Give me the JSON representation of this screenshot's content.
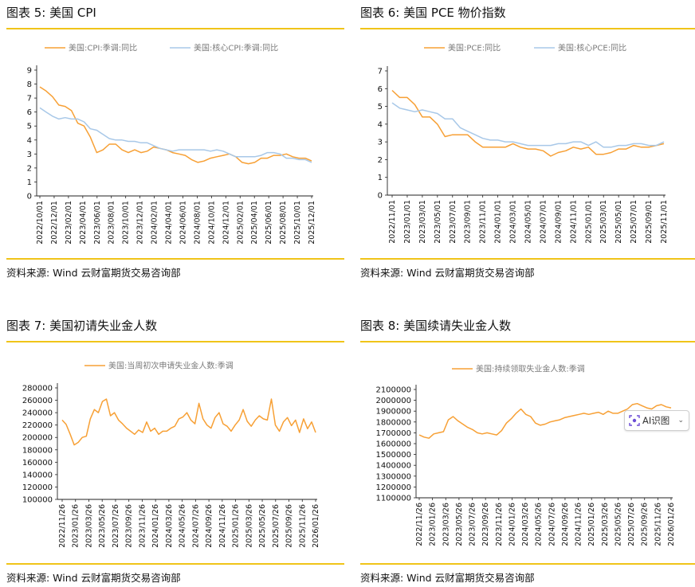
{
  "colors": {
    "orange": "#f7a035",
    "blue": "#a8c8e8",
    "accent": "#f0c419",
    "axis": "#222222"
  },
  "ai_badge": {
    "label": "AI识图",
    "icon": "ai-scan-icon",
    "caret": "⌄"
  },
  "panels": [
    {
      "title": "图表  5:  美国 CPI",
      "source": "资料来源:  Wind  云财富期货交易咨询部",
      "chart_data": {
        "type": "line",
        "y_ticks": [
          "0",
          "1",
          "2",
          "3",
          "4",
          "5",
          "6",
          "7",
          "8",
          "9"
        ],
        "ylim": [
          0,
          9
        ],
        "x_ticks": [
          "2022/10/01",
          "2022/12/01",
          "2023/02/01",
          "2023/04/01",
          "2023/06/01",
          "2023/08/01",
          "2023/10/01",
          "2023/12/01",
          "2024/02/01",
          "2024/04/01",
          "2024/06/01",
          "2024/08/01",
          "2024/10/01",
          "2024/12/01",
          "2025/02/01",
          "2025/04/01",
          "2025/06/01",
          "2025/08/01",
          "2025/10/01",
          "2025/12/01"
        ],
        "series": [
          {
            "name": "美国:CPI:季调:同比",
            "color": "orange",
            "values": [
              7.8,
              7.5,
              7.1,
              6.5,
              6.4,
              6.1,
              5.2,
              5.0,
              4.2,
              3.1,
              3.3,
              3.7,
              3.7,
              3.3,
              3.1,
              3.3,
              3.1,
              3.2,
              3.5,
              3.4,
              3.3,
              3.1,
              3.0,
              2.9,
              2.6,
              2.4,
              2.5,
              2.7,
              2.8,
              2.9,
              3.0,
              2.8,
              2.4,
              2.3,
              2.4,
              2.7,
              2.7,
              2.9,
              2.9,
              3.0,
              2.8,
              2.7,
              2.7,
              2.5
            ]
          },
          {
            "name": "美国:核心CPI:季调:同比",
            "color": "blue",
            "values": [
              6.3,
              6.0,
              5.7,
              5.5,
              5.6,
              5.5,
              5.5,
              5.3,
              4.8,
              4.7,
              4.4,
              4.1,
              4.0,
              4.0,
              3.9,
              3.9,
              3.8,
              3.8,
              3.6,
              3.4,
              3.3,
              3.2,
              3.3,
              3.3,
              3.3,
              3.3,
              3.3,
              3.2,
              3.3,
              3.2,
              3.0,
              2.8,
              2.8,
              2.8,
              2.8,
              2.9,
              3.1,
              3.1,
              3.0,
              2.7,
              2.7,
              2.6,
              2.6,
              2.4
            ]
          }
        ]
      }
    },
    {
      "title": "图表  6:  美国 PCE 物价指数",
      "source": "资料来源:  Wind  云财富期货交易咨询部",
      "chart_data": {
        "type": "line",
        "y_ticks": [
          "0",
          "1",
          "2",
          "3",
          "4",
          "5",
          "6",
          "7"
        ],
        "ylim": [
          0,
          7
        ],
        "x_ticks": [
          "2022/11/01",
          "2023/01/01",
          "2023/03/01",
          "2023/05/01",
          "2023/07/01",
          "2023/09/01",
          "2023/11/01",
          "2024/01/01",
          "2024/03/01",
          "2024/05/01",
          "2024/07/01",
          "2024/09/01",
          "2024/11/01",
          "2025/01/01",
          "2025/03/01",
          "2025/05/01",
          "2025/07/01",
          "2025/09/01",
          "2025/11/01"
        ],
        "series": [
          {
            "name": "美国:PCE:同比",
            "color": "orange",
            "values": [
              5.9,
              5.5,
              5.5,
              5.1,
              4.4,
              4.4,
              4.0,
              3.3,
              3.4,
              3.4,
              3.4,
              3.0,
              2.7,
              2.7,
              2.7,
              2.7,
              2.9,
              2.7,
              2.6,
              2.6,
              2.5,
              2.2,
              2.4,
              2.5,
              2.7,
              2.6,
              2.7,
              2.3,
              2.3,
              2.4,
              2.6,
              2.6,
              2.8,
              2.7,
              2.7,
              2.8,
              2.9
            ]
          },
          {
            "name": "美国:核心PCE:同比",
            "color": "blue",
            "values": [
              5.2,
              4.9,
              4.8,
              4.7,
              4.8,
              4.7,
              4.6,
              4.3,
              4.3,
              3.8,
              3.6,
              3.4,
              3.2,
              3.1,
              3.1,
              3.0,
              3.0,
              2.9,
              2.8,
              2.8,
              2.8,
              2.8,
              2.9,
              2.9,
              3.0,
              3.0,
              2.8,
              3.0,
              2.7,
              2.7,
              2.8,
              2.8,
              2.9,
              2.9,
              2.8,
              2.8,
              3.0
            ]
          }
        ]
      }
    },
    {
      "title": "图表  7:  美国初请失业金人数",
      "source": "资料来源:  Wind  云财富期货交易咨询部",
      "chart_data": {
        "type": "line",
        "y_ticks": [
          "100000",
          "120000",
          "140000",
          "160000",
          "180000",
          "200000",
          "220000",
          "240000",
          "260000",
          "280000"
        ],
        "ylim": [
          100000,
          280000
        ],
        "x_ticks": [
          "2022/11/26",
          "2023/01/26",
          "2023/03/26",
          "2023/05/26",
          "2023/07/26",
          "2023/09/26",
          "2023/11/26",
          "2024/01/26",
          "2024/03/26",
          "2024/05/26",
          "2024/07/26",
          "2024/09/26",
          "2024/11/26",
          "2025/01/26",
          "2025/03/26",
          "2025/05/26",
          "2025/07/26",
          "2025/09/26",
          "2025/11/26",
          "2026/01/26"
        ],
        "series": [
          {
            "name": "美国:当周初次申请失业金人数:季调",
            "color": "orange",
            "values": [
              228000,
              221000,
              205000,
              188000,
              192000,
              200000,
              202000,
              230000,
              245000,
              240000,
              258000,
              262000,
              235000,
              240000,
              228000,
              222000,
              215000,
              210000,
              205000,
              212000,
              208000,
              225000,
              210000,
              215000,
              205000,
              210000,
              210000,
              215000,
              218000,
              230000,
              233000,
              240000,
              228000,
              222000,
              255000,
              230000,
              220000,
              215000,
              232000,
              240000,
              222000,
              218000,
              210000,
              220000,
              228000,
              245000,
              226000,
              218000,
              228000,
              235000,
              230000,
              228000,
              262000,
              220000,
              210000,
              225000,
              232000,
              219000,
              228000,
              208000,
              230000,
              214000,
              225000,
              208000
            ]
          }
        ]
      }
    },
    {
      "title": "图表  8:  美国续请失业金人数",
      "source": "资料来源:  Wind  云财富期货交易咨询部",
      "chart_data": {
        "type": "line",
        "y_ticks": [
          "1100000",
          "1200000",
          "1300000",
          "1400000",
          "1500000",
          "1600000",
          "1700000",
          "1800000",
          "1900000",
          "2000000",
          "2100000"
        ],
        "ylim": [
          1100000,
          2100000
        ],
        "x_ticks": [
          "2022/11/26",
          "2023/01/26",
          "2023/03/26",
          "2023/05/26",
          "2023/07/26",
          "2023/09/26",
          "2023/11/26",
          "2024/01/26",
          "2024/03/26",
          "2024/05/26",
          "2024/07/26",
          "2024/09/26",
          "2024/11/26",
          "2025/01/26",
          "2025/03/26",
          "2025/05/26",
          "2025/07/26",
          "2025/09/26",
          "2025/11/26",
          "2026/01/26"
        ],
        "series": [
          {
            "name": "美国:持续领取失业金人数:季调",
            "color": "orange",
            "values": [
              1680000,
              1660000,
              1650000,
              1690000,
              1700000,
              1710000,
              1820000,
              1850000,
              1810000,
              1780000,
              1750000,
              1730000,
              1700000,
              1690000,
              1700000,
              1690000,
              1680000,
              1720000,
              1790000,
              1830000,
              1880000,
              1920000,
              1870000,
              1850000,
              1790000,
              1770000,
              1780000,
              1800000,
              1810000,
              1820000,
              1840000,
              1850000,
              1860000,
              1870000,
              1880000,
              1870000,
              1880000,
              1890000,
              1870000,
              1900000,
              1880000,
              1880000,
              1900000,
              1920000,
              1960000,
              1970000,
              1950000,
              1930000,
              1920000,
              1950000,
              1960000,
              1940000,
              1930000
            ]
          }
        ]
      }
    }
  ]
}
